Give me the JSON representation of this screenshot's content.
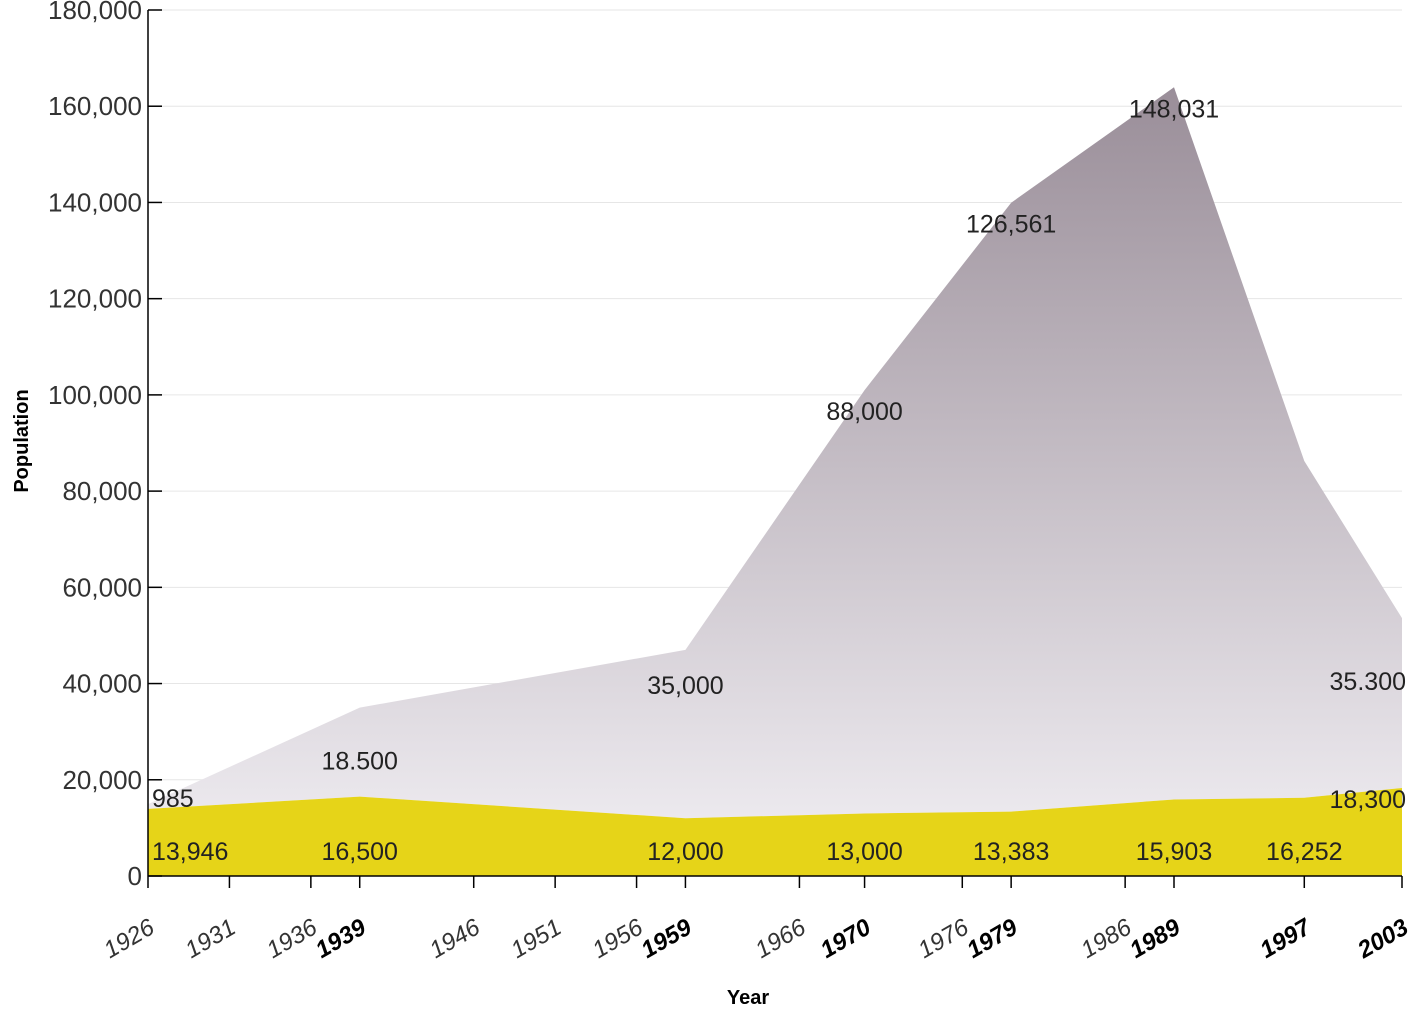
{
  "chart_data": {
    "type": "area",
    "title": "",
    "xlabel": "Year",
    "ylabel": "Population",
    "ylim": [
      0,
      180000
    ],
    "yticks": [
      0,
      20000,
      40000,
      60000,
      80000,
      100000,
      120000,
      140000,
      160000,
      180000
    ],
    "ytick_labels": [
      "0",
      "20,000",
      "40,000",
      "60,000",
      "80,000",
      "100,000",
      "120,000",
      "140,000",
      "160,000",
      "180,000"
    ],
    "xlim": [
      1926,
      2003
    ],
    "xticks": [
      {
        "year": 1926,
        "label": "1926",
        "bold": false
      },
      {
        "year": 1931,
        "label": "1931",
        "bold": false
      },
      {
        "year": 1936,
        "label": "1936",
        "bold": false
      },
      {
        "year": 1939,
        "label": "1939",
        "bold": true
      },
      {
        "year": 1946,
        "label": "1946",
        "bold": false
      },
      {
        "year": 1951,
        "label": "1951",
        "bold": false
      },
      {
        "year": 1956,
        "label": "1956",
        "bold": false
      },
      {
        "year": 1959,
        "label": "1959",
        "bold": true
      },
      {
        "year": 1966,
        "label": "1966",
        "bold": false
      },
      {
        "year": 1970,
        "label": "1970",
        "bold": true
      },
      {
        "year": 1976,
        "label": "1976",
        "bold": false
      },
      {
        "year": 1979,
        "label": "1979",
        "bold": true
      },
      {
        "year": 1986,
        "label": "1986",
        "bold": false
      },
      {
        "year": 1989,
        "label": "1989",
        "bold": true
      },
      {
        "year": 1997,
        "label": "1997",
        "bold": true
      },
      {
        "year": 2003,
        "label": "2003",
        "bold": true
      }
    ],
    "grid": true,
    "series": [
      {
        "color": "#e6d418",
        "x": [
          1926,
          1939,
          1959,
          1970,
          1979,
          1989,
          1997,
          2003
        ],
        "values": [
          13946,
          16500,
          12000,
          13000,
          13383,
          15903,
          16252,
          18300
        ],
        "data_labels": [
          "13,946",
          "16,500",
          "12,000",
          "13,000",
          "13,383",
          "15,903",
          "16,252",
          "18,300"
        ]
      },
      {
        "color_top": "#9a8e99",
        "color_bottom": "#ece9ee",
        "x": [
          1926,
          1939,
          1959,
          1970,
          1979,
          1989,
          1997,
          2003
        ],
        "values": [
          985,
          18500,
          35000,
          88000,
          126561,
          148031,
          70000,
          35300
        ],
        "data_labels": [
          "985",
          "18.500",
          "35,000",
          "88,000",
          "126,561",
          "148,031",
          null,
          "35.300"
        ]
      }
    ]
  }
}
